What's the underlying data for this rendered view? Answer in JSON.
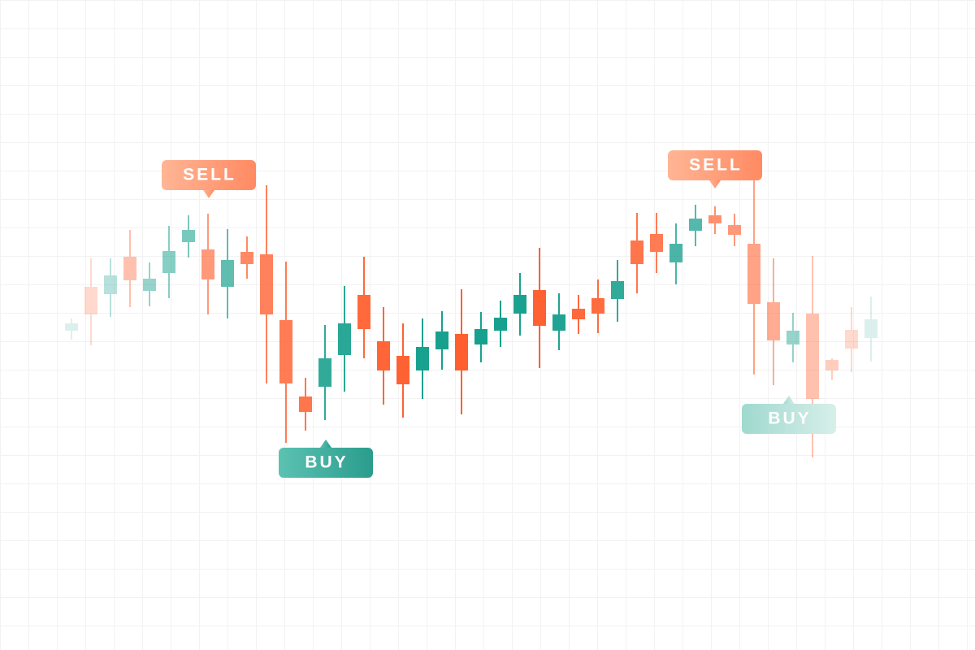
{
  "chart_data": {
    "type": "candlestick",
    "ylim": [
      0,
      800
    ],
    "up_color": "#17a08e",
    "down_color": "#ff5f2e",
    "series": {
      "open": [
        393,
        447,
        438,
        484,
        442,
        464,
        502,
        493,
        447,
        490,
        487,
        406,
        312,
        324,
        363,
        437,
        380,
        362,
        344,
        370,
        389,
        376,
        393,
        414,
        443,
        393,
        420,
        433,
        432,
        504,
        512,
        477,
        516,
        535,
        523,
        500,
        428,
        376,
        414,
        357,
        394,
        384
      ],
      "high": [
        408,
        482,
        482,
        517,
        477,
        522,
        535,
        537,
        518,
        509,
        572,
        478,
        335,
        400,
        448,
        484,
        422,
        402,
        408,
        417,
        444,
        416,
        430,
        464,
        495,
        439,
        437,
        456,
        480,
        538,
        538,
        525,
        548,
        546,
        537,
        580,
        482,
        415,
        485,
        359,
        422,
        435
      ],
      "low": [
        382,
        375,
        410,
        422,
        423,
        433,
        483,
        413,
        408,
        457,
        328,
        255,
        270,
        283,
        318,
        359,
        302,
        286,
        309,
        345,
        290,
        354,
        373,
        387,
        347,
        369,
        389,
        390,
        404,
        439,
        464,
        450,
        497,
        512,
        497,
        339,
        326,
        354,
        237,
        332,
        342,
        355
      ],
      "close": [
        402,
        413,
        461,
        455,
        457,
        491,
        517,
        456,
        480,
        475,
        413,
        328,
        293,
        359,
        402,
        395,
        344,
        327,
        373,
        392,
        344,
        395,
        409,
        437,
        399,
        413,
        407,
        414,
        454,
        475,
        490,
        500,
        531,
        525,
        511,
        426,
        381,
        393,
        309,
        344,
        371,
        407
      ]
    },
    "annotations": [
      "SELL",
      "BUY",
      "SELL",
      "BUY"
    ]
  }
}
